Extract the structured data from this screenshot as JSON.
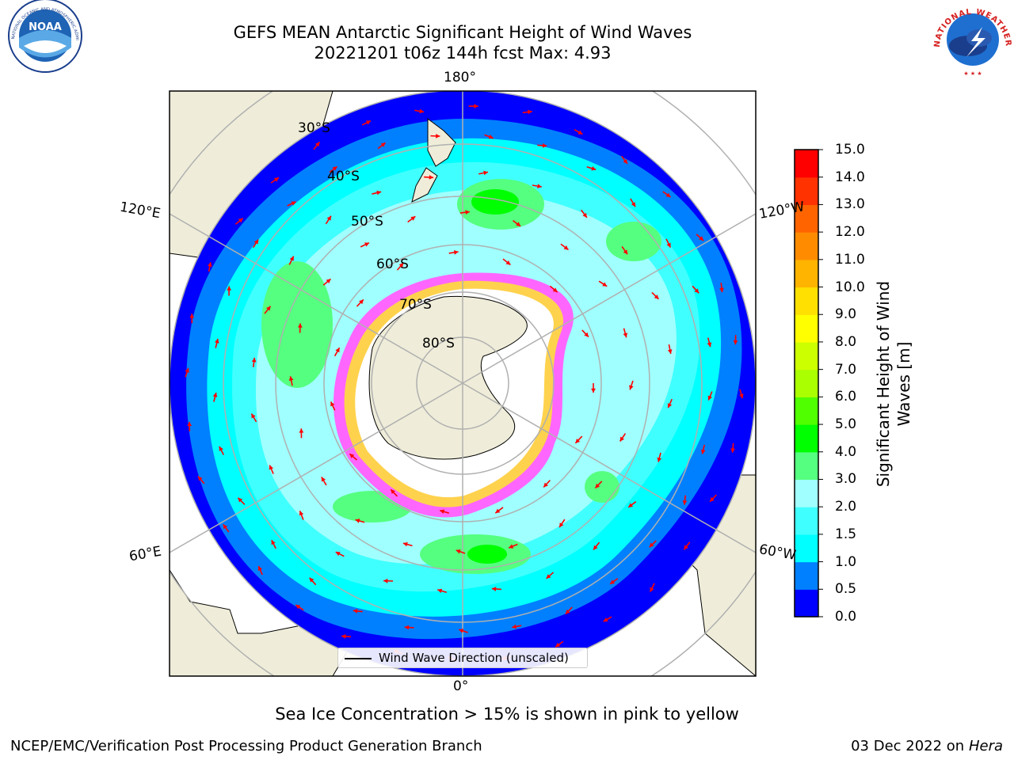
{
  "header": {
    "title_line1": "GEFS MEAN Antarctic Significant Height of Wind Waves",
    "title_line2": "20221201 t06z 144h fcst   Max: 4.93"
  },
  "logos": {
    "noaa_text": "NOAA",
    "noaa_ring_text": "NATIONAL OCEANIC AND ATMOSPHERIC ADMINISTRATION · U.S. DEPARTMENT OF COMMERCE",
    "nws_ring_text": "NATIONAL WEATHER SERVICE"
  },
  "map": {
    "projection": "south-polar-stereographic",
    "longitude_labels": {
      "top": "180°",
      "bottom": "0°",
      "left_upper": "120°E",
      "left_lower": "60°E",
      "right_upper": "120°W",
      "right_lower": "60°W"
    },
    "latitude_labels": [
      "30°S",
      "40°S",
      "50°S",
      "60°S",
      "70°S",
      "80°S"
    ],
    "legend_text": "Wind Wave Direction (unscaled)",
    "colors": {
      "land": "#efedd9",
      "ice": "#ffffff",
      "arrow": "#ff0000",
      "grid": "#b0b0b0"
    }
  },
  "colorbar": {
    "label": "Significant Height of Wind Waves [m]",
    "ticks": [
      "0.0",
      "0.5",
      "1.0",
      "1.5",
      "2.0",
      "3.0",
      "4.0",
      "5.0",
      "6.0",
      "7.0",
      "8.0",
      "9.0",
      "10.0",
      "11.0",
      "12.0",
      "13.0",
      "14.0",
      "15.0"
    ],
    "colors": [
      "#0000ff",
      "#0080ff",
      "#00ffff",
      "#40ffff",
      "#a0ffff",
      "#55ff7f",
      "#00ff00",
      "#50ff00",
      "#aaff00",
      "#ccff00",
      "#ffff00",
      "#ffe000",
      "#ffb400",
      "#ff8c00",
      "#ff6400",
      "#ff3200",
      "#ff0000"
    ]
  },
  "footer": {
    "sea_ice_note": "Sea Ice Concentration > 15% is shown in pink to yellow",
    "credit": "NCEP/EMC/Verification Post Processing Product Generation Branch",
    "date_prefix": "03 Dec 2022 on",
    "machine": "Hera"
  }
}
